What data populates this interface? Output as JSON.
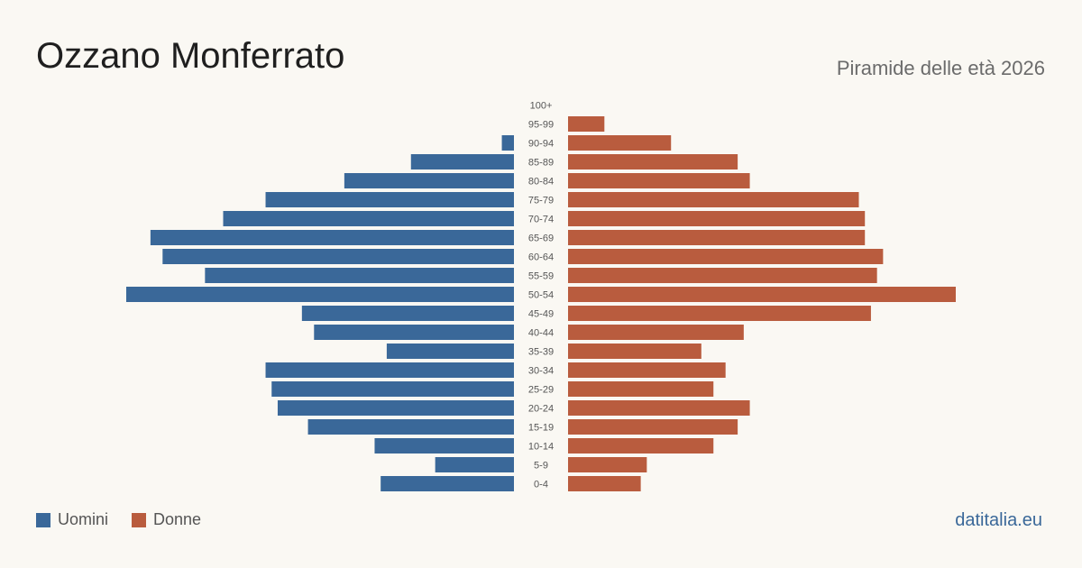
{
  "header": {
    "title": "Ozzano Monferrato",
    "subtitle": "Piramide delle età 2026"
  },
  "legend": {
    "men_label": "Uomini",
    "women_label": "Donne"
  },
  "colors": {
    "men": "#3a6899",
    "women": "#b95c3e",
    "background": "#faf8f3"
  },
  "footer": {
    "site": "datitalia.eu"
  },
  "chart_data": {
    "type": "bar",
    "orientation": "horizontal",
    "layout": "population-pyramid",
    "categories": [
      "100+",
      "95-99",
      "90-94",
      "85-89",
      "80-84",
      "75-79",
      "70-74",
      "65-69",
      "60-64",
      "55-59",
      "50-54",
      "45-49",
      "40-44",
      "35-39",
      "30-34",
      "25-29",
      "20-24",
      "15-19",
      "10-14",
      "5-9",
      "0-4"
    ],
    "series": [
      {
        "name": "Uomini",
        "values": [
          0,
          0,
          2,
          17,
          28,
          41,
          48,
          60,
          58,
          51,
          64,
          35,
          33,
          21,
          41,
          40,
          39,
          34,
          23,
          13,
          22
        ]
      },
      {
        "name": "Donne",
        "values": [
          0,
          6,
          17,
          28,
          30,
          48,
          49,
          49,
          52,
          51,
          64,
          50,
          29,
          22,
          26,
          24,
          30,
          28,
          24,
          13,
          12
        ]
      }
    ],
    "xlabel": "",
    "ylabel": "",
    "grid": false,
    "legend_position": "bottom-left"
  }
}
